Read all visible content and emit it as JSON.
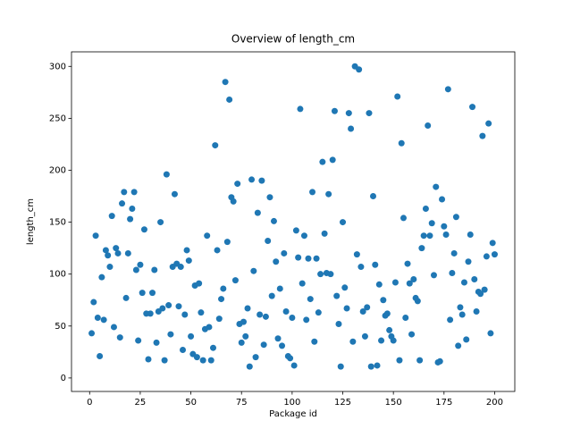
{
  "chart_data": {
    "type": "scatter",
    "title": "Overview of length_cm",
    "xlabel": "Package id",
    "ylabel": "length_cm",
    "color": "#1f77b4",
    "xlim": [
      -8.95,
      209.95
    ],
    "ylim": [
      -13,
      314
    ],
    "xticks": [
      0,
      25,
      50,
      75,
      100,
      125,
      150,
      175,
      200
    ],
    "yticks": [
      0,
      50,
      100,
      150,
      200,
      250,
      300
    ],
    "x": [
      1,
      2,
      3,
      4,
      5,
      6,
      7,
      8,
      9,
      10,
      11,
      12,
      13,
      14,
      15,
      16,
      17,
      18,
      19,
      20,
      21,
      22,
      23,
      24,
      25,
      26,
      27,
      28,
      29,
      30,
      31,
      32,
      33,
      34,
      35,
      36,
      37,
      38,
      39,
      40,
      41,
      42,
      43,
      44,
      45,
      46,
      47,
      48,
      49,
      50,
      51,
      52,
      53,
      54,
      55,
      56,
      57,
      58,
      59,
      60,
      61,
      62,
      63,
      64,
      65,
      66,
      67,
      68,
      69,
      70,
      71,
      72,
      73,
      74,
      75,
      76,
      77,
      78,
      79,
      80,
      81,
      82,
      83,
      84,
      85,
      86,
      87,
      88,
      89,
      90,
      91,
      92,
      93,
      94,
      95,
      96,
      97,
      98,
      99,
      100,
      101,
      102,
      103,
      104,
      105,
      106,
      107,
      108,
      109,
      110,
      111,
      112,
      113,
      114,
      115,
      116,
      117,
      118,
      119,
      120,
      121,
      122,
      123,
      124,
      125,
      126,
      127,
      128,
      129,
      130,
      131,
      132,
      133,
      134,
      135,
      136,
      137,
      138,
      139,
      140,
      141,
      142,
      143,
      144,
      145,
      146,
      147,
      148,
      149,
      150,
      151,
      152,
      153,
      154,
      155,
      156,
      157,
      158,
      159,
      160,
      161,
      162,
      163,
      164,
      165,
      166,
      167,
      168,
      169,
      170,
      171,
      172,
      173,
      174,
      175,
      176,
      177,
      178,
      179,
      180,
      181,
      182,
      183,
      184,
      185,
      186,
      187,
      188,
      189,
      190,
      191,
      192,
      193,
      194,
      195,
      196,
      197,
      198,
      199,
      200
    ],
    "values": [
      43,
      73,
      137,
      58,
      21,
      97,
      56,
      123,
      118,
      107,
      156,
      49,
      125,
      120,
      39,
      168,
      179,
      77,
      120,
      153,
      163,
      179,
      104,
      36,
      109,
      82,
      143,
      62,
      18,
      62,
      82,
      104,
      34,
      64,
      150,
      67,
      17,
      196,
      70,
      42,
      107,
      177,
      110,
      69,
      107,
      27,
      61,
      123,
      113,
      40,
      23,
      89,
      20,
      91,
      63,
      17,
      47,
      137,
      49,
      17,
      29,
      224,
      123,
      57,
      76,
      86,
      285,
      131,
      268,
      174,
      170,
      94,
      187,
      52,
      34,
      54,
      40,
      67,
      11,
      191,
      103,
      20,
      159,
      61,
      190,
      32,
      59,
      132,
      174,
      79,
      151,
      112,
      38,
      86,
      31,
      120,
      64,
      21,
      19,
      58,
      12,
      142,
      116,
      259,
      91,
      137,
      56,
      115,
      76,
      179,
      35,
      115,
      63,
      100,
      208,
      139,
      101,
      177,
      100,
      210,
      257,
      79,
      52,
      11,
      150,
      87,
      67,
      255,
      240,
      35,
      300,
      119,
      297,
      107,
      64,
      40,
      68,
      255,
      11,
      175,
      109,
      12,
      90,
      36,
      75,
      60,
      62,
      46,
      40,
      36,
      92,
      271,
      17,
      226,
      154,
      58,
      110,
      91,
      42,
      95,
      77,
      74,
      17,
      125,
      137,
      163,
      243,
      137,
      149,
      99,
      184,
      15,
      16,
      172,
      146,
      138,
      278,
      56,
      101,
      120,
      155,
      31,
      68,
      61,
      92,
      37,
      112,
      138,
      261,
      95,
      64,
      83,
      81,
      233,
      85,
      117,
      245,
      43,
      130,
      119
    ]
  }
}
